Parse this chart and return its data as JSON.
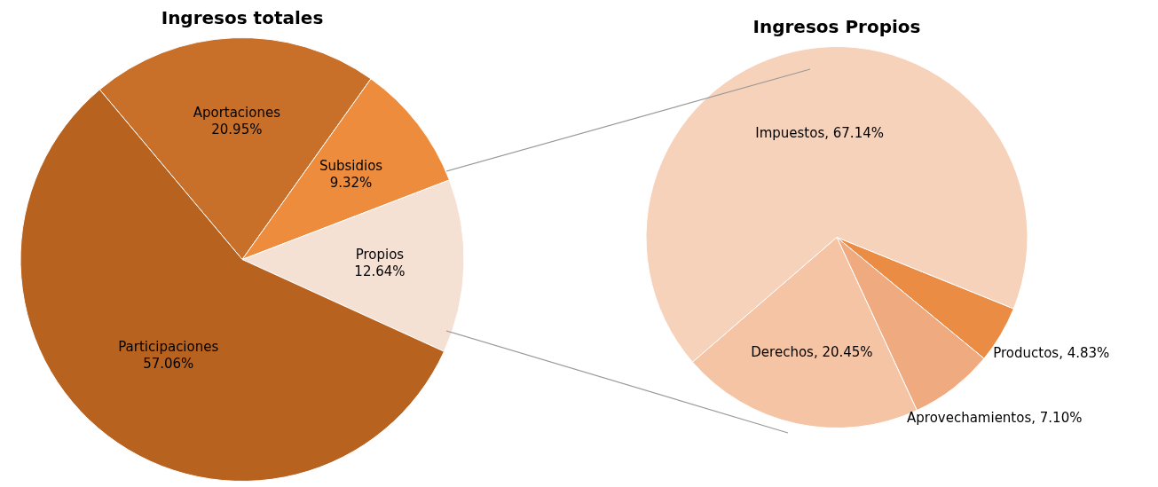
{
  "chart_data": [
    {
      "type": "pie",
      "title": "Ingresos totales",
      "categories": [
        "Aportaciones",
        "Subsidios",
        "Propios",
        "Participaciones"
      ],
      "values": [
        20.95,
        9.32,
        12.64,
        57.06
      ],
      "colors": [
        "#c8702a",
        "#ec8c3c",
        "#f5e0d4",
        "#b8621f"
      ],
      "value_labels": [
        "20.95%",
        "9.32%",
        "12.64%",
        "57.06%"
      ],
      "legend": false
    },
    {
      "type": "pie",
      "title": "Ingresos Propios",
      "categories": [
        "Productos",
        "Aprovechamientos",
        "Derechos",
        "Impuestos"
      ],
      "values": [
        4.83,
        7.1,
        20.45,
        67.14
      ],
      "colors": [
        "#eb8c44",
        "#f0aa80",
        "#f5c4a4",
        "#f7d2bb"
      ],
      "value_labels": [
        "4.83%",
        "7.10%",
        "20.45%",
        "67.14%"
      ],
      "legend": false
    }
  ]
}
